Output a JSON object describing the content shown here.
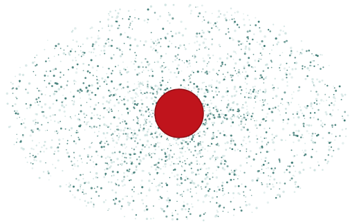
{
  "figure": {
    "background_color": "#ffffff",
    "particle_color": "#3d7a74",
    "particle_halo_color": "#b9d6d3",
    "core_color": "#c0141c",
    "core_edge_color": "#8e0d14"
  }
}
